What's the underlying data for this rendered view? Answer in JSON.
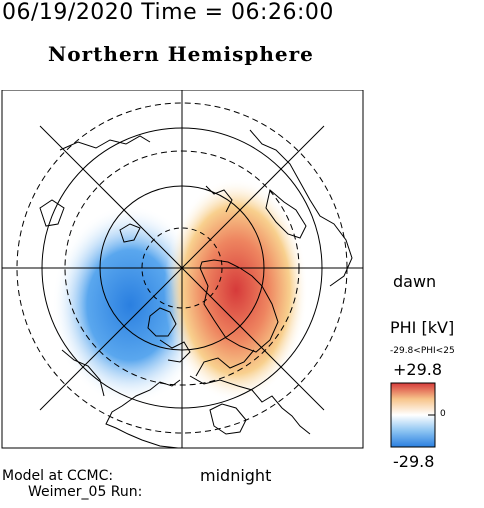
{
  "header": {
    "datetime": "06/19/2020 Time = 06:26:00",
    "hemisphere": "Northern Hemisphere"
  },
  "labels": {
    "dawn": "dawn",
    "midnight": "midnight",
    "model_line1": "Model at CCMC:",
    "model_line2": "Weimer_05 Run:"
  },
  "colorbar": {
    "title": "PHI [kV]",
    "range_text": "-29.8<PHI<25",
    "max_label": "+29.8",
    "mid_label": "0",
    "min_label": "-29.8",
    "colors": [
      "#2a7fe0",
      "#8cc4f2",
      "#ffffff",
      "#f7c48a",
      "#d63a3a"
    ]
  },
  "potential": {
    "negative_cell_peak_kv": -29.8,
    "positive_cell_peak_kv": 25
  }
}
